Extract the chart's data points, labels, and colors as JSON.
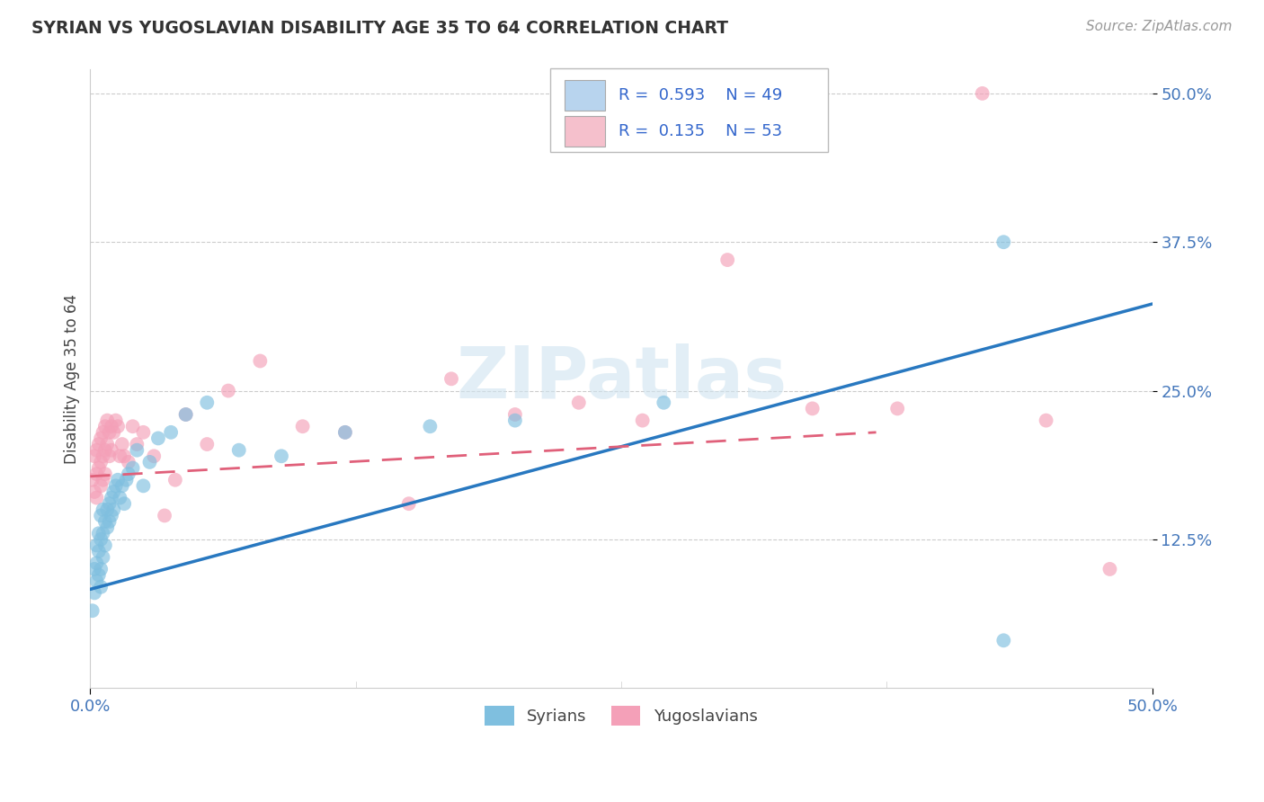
{
  "title": "SYRIAN VS YUGOSLAVIAN DISABILITY AGE 35 TO 64 CORRELATION CHART",
  "source": "Source: ZipAtlas.com",
  "ylabel": "Disability Age 35 to 64",
  "ytick_labels": [
    "12.5%",
    "25.0%",
    "37.5%",
    "50.0%"
  ],
  "ytick_values": [
    0.125,
    0.25,
    0.375,
    0.5
  ],
  "xlim": [
    0.0,
    0.5
  ],
  "ylim": [
    0.0,
    0.52
  ],
  "blue_color": "#7fbfdf",
  "pink_color": "#f4a0b8",
  "blue_line_color": "#2878c0",
  "pink_line_color": "#e0607a",
  "legend_box_blue": "#b8d4ee",
  "legend_box_pink": "#f5c0cc",
  "watermark_text": "ZIPatlas",
  "syrian_x": [
    0.001,
    0.002,
    0.002,
    0.003,
    0.003,
    0.003,
    0.004,
    0.004,
    0.004,
    0.005,
    0.005,
    0.005,
    0.005,
    0.006,
    0.006,
    0.006,
    0.007,
    0.007,
    0.008,
    0.008,
    0.009,
    0.009,
    0.01,
    0.01,
    0.011,
    0.011,
    0.012,
    0.013,
    0.014,
    0.015,
    0.016,
    0.017,
    0.018,
    0.02,
    0.022,
    0.025,
    0.028,
    0.032,
    0.038,
    0.045,
    0.055,
    0.07,
    0.09,
    0.12,
    0.16,
    0.2,
    0.27,
    0.43,
    0.43
  ],
  "syrian_y": [
    0.065,
    0.1,
    0.08,
    0.12,
    0.105,
    0.09,
    0.115,
    0.095,
    0.13,
    0.125,
    0.1,
    0.085,
    0.145,
    0.13,
    0.11,
    0.15,
    0.14,
    0.12,
    0.15,
    0.135,
    0.155,
    0.14,
    0.16,
    0.145,
    0.165,
    0.15,
    0.17,
    0.175,
    0.16,
    0.17,
    0.155,
    0.175,
    0.18,
    0.185,
    0.2,
    0.17,
    0.19,
    0.21,
    0.215,
    0.23,
    0.24,
    0.2,
    0.195,
    0.215,
    0.22,
    0.225,
    0.24,
    0.375,
    0.04
  ],
  "yugoslav_x": [
    0.001,
    0.002,
    0.002,
    0.003,
    0.003,
    0.003,
    0.004,
    0.004,
    0.005,
    0.005,
    0.005,
    0.006,
    0.006,
    0.006,
    0.007,
    0.007,
    0.007,
    0.008,
    0.008,
    0.009,
    0.009,
    0.01,
    0.01,
    0.011,
    0.012,
    0.013,
    0.014,
    0.015,
    0.016,
    0.018,
    0.02,
    0.022,
    0.025,
    0.03,
    0.035,
    0.04,
    0.045,
    0.055,
    0.065,
    0.08,
    0.1,
    0.12,
    0.15,
    0.17,
    0.2,
    0.23,
    0.26,
    0.3,
    0.34,
    0.38,
    0.42,
    0.45,
    0.48
  ],
  "yugoslav_y": [
    0.175,
    0.195,
    0.165,
    0.2,
    0.18,
    0.16,
    0.205,
    0.185,
    0.21,
    0.19,
    0.17,
    0.215,
    0.195,
    0.175,
    0.22,
    0.2,
    0.18,
    0.225,
    0.205,
    0.215,
    0.195,
    0.22,
    0.2,
    0.215,
    0.225,
    0.22,
    0.195,
    0.205,
    0.195,
    0.19,
    0.22,
    0.205,
    0.215,
    0.195,
    0.145,
    0.175,
    0.23,
    0.205,
    0.25,
    0.275,
    0.22,
    0.215,
    0.155,
    0.26,
    0.23,
    0.24,
    0.225,
    0.36,
    0.235,
    0.235,
    0.5,
    0.225,
    0.1
  ],
  "blue_line_x0": 0.0,
  "blue_line_y0": 0.083,
  "blue_line_x1": 0.5,
  "blue_line_y1": 0.323,
  "pink_line_x0": 0.0,
  "pink_line_y0": 0.178,
  "pink_line_x1": 0.37,
  "pink_line_y1": 0.215
}
